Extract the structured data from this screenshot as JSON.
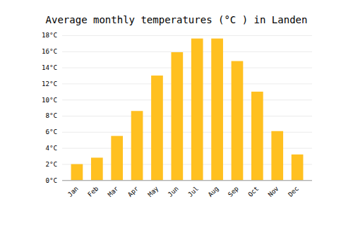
{
  "chart_data": {
    "type": "bar",
    "title": "Average monthly temperatures (°C ) in Landen",
    "categories": [
      "Jan",
      "Feb",
      "Mar",
      "Apr",
      "May",
      "Jun",
      "Jul",
      "Aug",
      "Sep",
      "Oct",
      "Nov",
      "Dec"
    ],
    "values": [
      2.0,
      2.8,
      5.5,
      8.6,
      13.0,
      15.9,
      17.6,
      17.6,
      14.8,
      11.0,
      6.1,
      3.2
    ],
    "color": "#FFC020",
    "ylim": [
      0,
      18
    ],
    "yticks": [
      {
        "value": 0,
        "label": "0°C"
      },
      {
        "value": 2,
        "label": "2°C"
      },
      {
        "value": 4,
        "label": "4°C"
      },
      {
        "value": 6,
        "label": "6°C"
      },
      {
        "value": 8,
        "label": "8°C"
      },
      {
        "value": 10,
        "label": "10°C"
      },
      {
        "value": 12,
        "label": "12°C"
      },
      {
        "value": 14,
        "label": "14°C"
      },
      {
        "value": 16,
        "label": "16°C"
      },
      {
        "value": 18,
        "label": "18°C"
      }
    ],
    "grid": true
  }
}
